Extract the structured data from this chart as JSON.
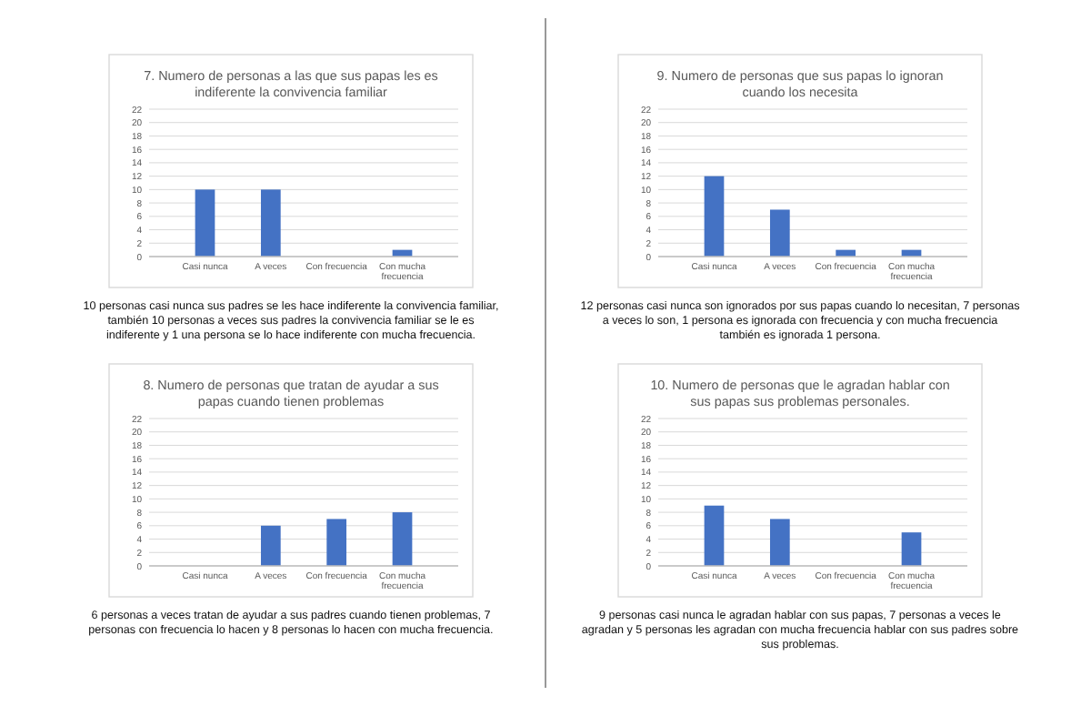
{
  "chart_data": [
    {
      "type": "bar",
      "title": "7. Numero de personas a las que sus papas les es indiferente la convivencia familiar",
      "categories": [
        "Casi nunca",
        "A veces",
        "Con frecuencia",
        "Con mucha frecuencia"
      ],
      "values": [
        10,
        10,
        0,
        1
      ],
      "color": "#4472c4",
      "ylim": [
        0,
        22
      ],
      "yticks": [
        0,
        2,
        4,
        6,
        8,
        10,
        12,
        14,
        16,
        18,
        20,
        22
      ],
      "grid": "y",
      "annotations": [
        "10 personas casi nunca sus padres se les hace indiferente la convivencia familiar, también 10 personas a veces sus padres la convivencia familiar se le es indiferente y 1 una persona se lo hace indiferente con mucha frecuencia."
      ]
    },
    {
      "type": "bar",
      "title": "9. Numero de personas que sus papas lo ignoran cuando los necesita",
      "categories": [
        "Casi nunca",
        "A veces",
        "Con frecuencia",
        "Con mucha frecuencia"
      ],
      "values": [
        12,
        7,
        1,
        1
      ],
      "color": "#4472c4",
      "ylim": [
        0,
        22
      ],
      "yticks": [
        0,
        2,
        4,
        6,
        8,
        10,
        12,
        14,
        16,
        18,
        20,
        22
      ],
      "grid": "y",
      "annotations": [
        "12 personas casi nunca son ignorados por sus papas cuando lo necesitan, 7 personas a veces lo son, 1 persona es ignorada con frecuencia y con mucha frecuencia también es ignorada 1 persona."
      ]
    },
    {
      "type": "bar",
      "title": "8. Numero de personas que tratan de ayudar a sus papas cuando tienen problemas",
      "categories": [
        "Casi nunca",
        "A veces",
        "Con frecuencia",
        "Con mucha frecuencia"
      ],
      "values": [
        0,
        6,
        7,
        8
      ],
      "color": "#4472c4",
      "ylim": [
        0,
        22
      ],
      "yticks": [
        0,
        2,
        4,
        6,
        8,
        10,
        12,
        14,
        16,
        18,
        20,
        22
      ],
      "grid": "y",
      "annotations": [
        "6 personas a veces tratan de ayudar a sus padres cuando tienen problemas, 7 personas con frecuencia lo hacen y 8 personas lo hacen con mucha frecuencia."
      ]
    },
    {
      "type": "bar",
      "title": "10. Numero de personas que le agradan hablar con sus papas sus problemas personales.",
      "categories": [
        "Casi nunca",
        "A veces",
        "Con frecuencia",
        "Con mucha frecuencia"
      ],
      "values": [
        9,
        7,
        0,
        5
      ],
      "color": "#4472c4",
      "ylim": [
        0,
        22
      ],
      "yticks": [
        0,
        2,
        4,
        6,
        8,
        10,
        12,
        14,
        16,
        18,
        20,
        22
      ],
      "grid": "y",
      "annotations": [
        "9 personas casi nunca le agradan hablar con sus papas, 7 personas a veces le agradan y 5 personas les agradan con mucha frecuencia hablar con sus padres sobre sus problemas."
      ]
    }
  ]
}
